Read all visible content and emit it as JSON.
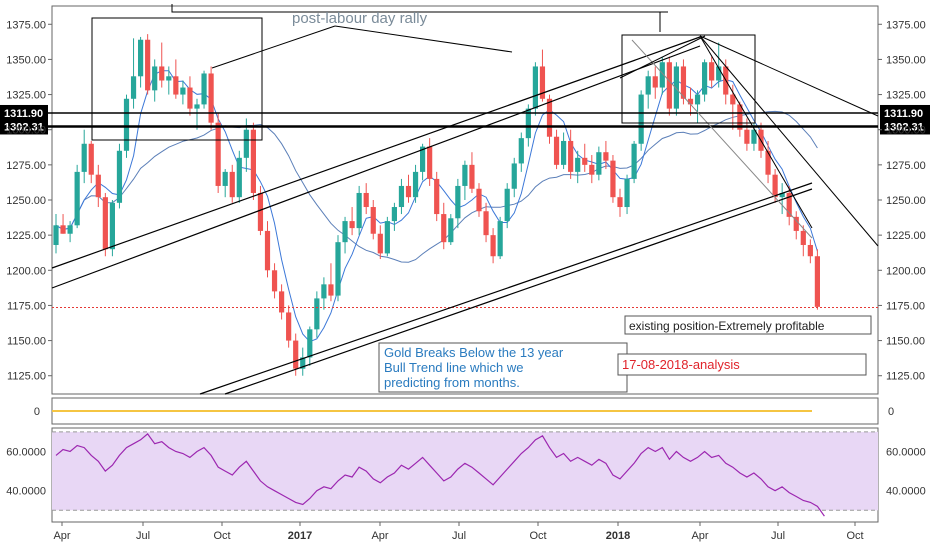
{
  "colors": {
    "up": "#26a69a",
    "down": "#ef5350",
    "ma_fast": "#3c78d8",
    "ma_slow": "#5b7fb8",
    "rsi_line": "#9c27b0",
    "rsi_band": "#e8d7f5",
    "volume_line": "#f5c542",
    "price_label_bg": "#000000",
    "annotation_blue": "#2a7bbf",
    "annotation_red": "#e0242b"
  },
  "axes": {
    "price_ticks": [
      "1375.00",
      "1350.00",
      "1325.00",
      "1300.00",
      "1275.00",
      "1250.00",
      "1225.00",
      "1200.00",
      "1175.00",
      "1150.00",
      "1125.00"
    ],
    "volume_ticks": [
      "0"
    ],
    "rsi_ticks": [
      "60.0000",
      "40.0000"
    ],
    "x_labels": [
      {
        "text": "Apr",
        "bold": false
      },
      {
        "text": "Jul",
        "bold": false
      },
      {
        "text": "Oct",
        "bold": false
      },
      {
        "text": "2017",
        "bold": true
      },
      {
        "text": "Apr",
        "bold": false
      },
      {
        "text": "Jul",
        "bold": false
      },
      {
        "text": "Oct",
        "bold": false
      },
      {
        "text": "2018",
        "bold": true
      },
      {
        "text": "Apr",
        "bold": false
      },
      {
        "text": "Jul",
        "bold": false
      },
      {
        "text": "Oct",
        "bold": false
      }
    ],
    "price_labels": [
      "1311.90",
      "1302.31"
    ]
  },
  "annotations": {
    "rally_label": "post-labour day rally",
    "gold_breaks": [
      "Gold Breaks Below the 13 year",
      "Bull Trend line which we",
      "predicting from months."
    ],
    "analysis_date": "17-08-2018-analysis",
    "position_note": "existing position-Extremely profitable"
  },
  "chart_data": {
    "type": "candlestick",
    "title": "",
    "xlabel": "",
    "ylabel": "",
    "ylim": [
      1112,
      1388
    ],
    "rsi_ylim": [
      24,
      72
    ],
    "horizontal_lines": [
      1311.9,
      1302.31,
      1173.5
    ],
    "candles": [
      {
        "o": 1218,
        "h": 1240,
        "l": 1212,
        "c": 1232
      },
      {
        "o": 1232,
        "h": 1240,
        "l": 1226,
        "c": 1226
      },
      {
        "o": 1226,
        "h": 1235,
        "l": 1220,
        "c": 1232
      },
      {
        "o": 1232,
        "h": 1275,
        "l": 1230,
        "c": 1270
      },
      {
        "o": 1270,
        "h": 1300,
        "l": 1262,
        "c": 1290
      },
      {
        "o": 1290,
        "h": 1292,
        "l": 1262,
        "c": 1268
      },
      {
        "o": 1268,
        "h": 1275,
        "l": 1245,
        "c": 1252
      },
      {
        "o": 1252,
        "h": 1255,
        "l": 1210,
        "c": 1215
      },
      {
        "o": 1215,
        "h": 1250,
        "l": 1210,
        "c": 1248
      },
      {
        "o": 1248,
        "h": 1290,
        "l": 1244,
        "c": 1285
      },
      {
        "o": 1285,
        "h": 1325,
        "l": 1280,
        "c": 1322
      },
      {
        "o": 1322,
        "h": 1365,
        "l": 1315,
        "c": 1338
      },
      {
        "o": 1338,
        "h": 1366,
        "l": 1330,
        "c": 1364
      },
      {
        "o": 1364,
        "h": 1368,
        "l": 1325,
        "c": 1328
      },
      {
        "o": 1328,
        "h": 1350,
        "l": 1320,
        "c": 1345
      },
      {
        "o": 1345,
        "h": 1362,
        "l": 1330,
        "c": 1335
      },
      {
        "o": 1335,
        "h": 1345,
        "l": 1325,
        "c": 1338
      },
      {
        "o": 1338,
        "h": 1350,
        "l": 1322,
        "c": 1325
      },
      {
        "o": 1325,
        "h": 1335,
        "l": 1318,
        "c": 1330
      },
      {
        "o": 1330,
        "h": 1338,
        "l": 1310,
        "c": 1315
      },
      {
        "o": 1315,
        "h": 1322,
        "l": 1300,
        "c": 1318
      },
      {
        "o": 1318,
        "h": 1342,
        "l": 1315,
        "c": 1340
      },
      {
        "o": 1340,
        "h": 1345,
        "l": 1300,
        "c": 1305
      },
      {
        "o": 1305,
        "h": 1312,
        "l": 1255,
        "c": 1260
      },
      {
        "o": 1260,
        "h": 1272,
        "l": 1252,
        "c": 1270
      },
      {
        "o": 1270,
        "h": 1275,
        "l": 1248,
        "c": 1252
      },
      {
        "o": 1252,
        "h": 1285,
        "l": 1248,
        "c": 1280
      },
      {
        "o": 1280,
        "h": 1308,
        "l": 1270,
        "c": 1300
      },
      {
        "o": 1300,
        "h": 1305,
        "l": 1250,
        "c": 1255
      },
      {
        "o": 1255,
        "h": 1260,
        "l": 1225,
        "c": 1228
      },
      {
        "o": 1228,
        "h": 1235,
        "l": 1195,
        "c": 1200
      },
      {
        "o": 1200,
        "h": 1205,
        "l": 1180,
        "c": 1185
      },
      {
        "o": 1185,
        "h": 1190,
        "l": 1165,
        "c": 1170
      },
      {
        "o": 1170,
        "h": 1175,
        "l": 1145,
        "c": 1150
      },
      {
        "o": 1150,
        "h": 1155,
        "l": 1125,
        "c": 1130
      },
      {
        "o": 1130,
        "h": 1145,
        "l": 1125,
        "c": 1138
      },
      {
        "o": 1138,
        "h": 1160,
        "l": 1132,
        "c": 1158
      },
      {
        "o": 1158,
        "h": 1185,
        "l": 1152,
        "c": 1180
      },
      {
        "o": 1180,
        "h": 1195,
        "l": 1172,
        "c": 1190
      },
      {
        "o": 1190,
        "h": 1205,
        "l": 1178,
        "c": 1182
      },
      {
        "o": 1182,
        "h": 1225,
        "l": 1178,
        "c": 1220
      },
      {
        "o": 1220,
        "h": 1238,
        "l": 1212,
        "c": 1235
      },
      {
        "o": 1235,
        "h": 1245,
        "l": 1225,
        "c": 1230
      },
      {
        "o": 1230,
        "h": 1260,
        "l": 1225,
        "c": 1255
      },
      {
        "o": 1255,
        "h": 1262,
        "l": 1240,
        "c": 1245
      },
      {
        "o": 1245,
        "h": 1250,
        "l": 1222,
        "c": 1226
      },
      {
        "o": 1226,
        "h": 1232,
        "l": 1208,
        "c": 1212
      },
      {
        "o": 1212,
        "h": 1238,
        "l": 1210,
        "c": 1235
      },
      {
        "o": 1235,
        "h": 1248,
        "l": 1228,
        "c": 1245
      },
      {
        "o": 1245,
        "h": 1265,
        "l": 1240,
        "c": 1260
      },
      {
        "o": 1260,
        "h": 1268,
        "l": 1248,
        "c": 1252
      },
      {
        "o": 1252,
        "h": 1275,
        "l": 1248,
        "c": 1270
      },
      {
        "o": 1270,
        "h": 1290,
        "l": 1264,
        "c": 1288
      },
      {
        "o": 1288,
        "h": 1294,
        "l": 1260,
        "c": 1265
      },
      {
        "o": 1265,
        "h": 1270,
        "l": 1235,
        "c": 1240
      },
      {
        "o": 1240,
        "h": 1248,
        "l": 1215,
        "c": 1220
      },
      {
        "o": 1220,
        "h": 1240,
        "l": 1218,
        "c": 1237
      },
      {
        "o": 1237,
        "h": 1265,
        "l": 1230,
        "c": 1260
      },
      {
        "o": 1260,
        "h": 1278,
        "l": 1250,
        "c": 1275
      },
      {
        "o": 1275,
        "h": 1284,
        "l": 1255,
        "c": 1258
      },
      {
        "o": 1258,
        "h": 1262,
        "l": 1238,
        "c": 1242
      },
      {
        "o": 1242,
        "h": 1248,
        "l": 1220,
        "c": 1225
      },
      {
        "o": 1225,
        "h": 1230,
        "l": 1205,
        "c": 1210
      },
      {
        "o": 1210,
        "h": 1238,
        "l": 1208,
        "c": 1235
      },
      {
        "o": 1235,
        "h": 1262,
        "l": 1230,
        "c": 1258
      },
      {
        "o": 1258,
        "h": 1280,
        "l": 1252,
        "c": 1276
      },
      {
        "o": 1276,
        "h": 1298,
        "l": 1270,
        "c": 1294
      },
      {
        "o": 1294,
        "h": 1318,
        "l": 1288,
        "c": 1315
      },
      {
        "o": 1315,
        "h": 1348,
        "l": 1310,
        "c": 1345
      },
      {
        "o": 1345,
        "h": 1357,
        "l": 1320,
        "c": 1322
      },
      {
        "o": 1322,
        "h": 1325,
        "l": 1290,
        "c": 1295
      },
      {
        "o": 1295,
        "h": 1300,
        "l": 1272,
        "c": 1275
      },
      {
        "o": 1275,
        "h": 1298,
        "l": 1272,
        "c": 1292
      },
      {
        "o": 1292,
        "h": 1300,
        "l": 1265,
        "c": 1270
      },
      {
        "o": 1270,
        "h": 1285,
        "l": 1262,
        "c": 1280
      },
      {
        "o": 1280,
        "h": 1290,
        "l": 1270,
        "c": 1275
      },
      {
        "o": 1275,
        "h": 1282,
        "l": 1262,
        "c": 1268
      },
      {
        "o": 1268,
        "h": 1288,
        "l": 1264,
        "c": 1284
      },
      {
        "o": 1284,
        "h": 1292,
        "l": 1272,
        "c": 1278
      },
      {
        "o": 1278,
        "h": 1282,
        "l": 1248,
        "c": 1252
      },
      {
        "o": 1252,
        "h": 1258,
        "l": 1238,
        "c": 1245
      },
      {
        "o": 1245,
        "h": 1268,
        "l": 1240,
        "c": 1265
      },
      {
        "o": 1265,
        "h": 1292,
        "l": 1262,
        "c": 1290
      },
      {
        "o": 1290,
        "h": 1328,
        "l": 1285,
        "c": 1325
      },
      {
        "o": 1325,
        "h": 1342,
        "l": 1315,
        "c": 1338
      },
      {
        "o": 1338,
        "h": 1345,
        "l": 1322,
        "c": 1330
      },
      {
        "o": 1330,
        "h": 1352,
        "l": 1325,
        "c": 1348
      },
      {
        "o": 1348,
        "h": 1352,
        "l": 1310,
        "c": 1315
      },
      {
        "o": 1315,
        "h": 1348,
        "l": 1310,
        "c": 1345
      },
      {
        "o": 1345,
        "h": 1350,
        "l": 1318,
        "c": 1322
      },
      {
        "o": 1322,
        "h": 1330,
        "l": 1310,
        "c": 1318
      },
      {
        "o": 1318,
        "h": 1328,
        "l": 1305,
        "c": 1325
      },
      {
        "o": 1325,
        "h": 1350,
        "l": 1320,
        "c": 1348
      },
      {
        "o": 1348,
        "h": 1352,
        "l": 1330,
        "c": 1335
      },
      {
        "o": 1335,
        "h": 1362,
        "l": 1330,
        "c": 1345
      },
      {
        "o": 1345,
        "h": 1350,
        "l": 1318,
        "c": 1325
      },
      {
        "o": 1325,
        "h": 1332,
        "l": 1300,
        "c": 1318
      },
      {
        "o": 1318,
        "h": 1320,
        "l": 1295,
        "c": 1300
      },
      {
        "o": 1300,
        "h": 1308,
        "l": 1285,
        "c": 1290
      },
      {
        "o": 1290,
        "h": 1305,
        "l": 1285,
        "c": 1300
      },
      {
        "o": 1300,
        "h": 1305,
        "l": 1280,
        "c": 1285
      },
      {
        "o": 1285,
        "h": 1292,
        "l": 1262,
        "c": 1268
      },
      {
        "o": 1268,
        "h": 1272,
        "l": 1248,
        "c": 1252
      },
      {
        "o": 1252,
        "h": 1262,
        "l": 1240,
        "c": 1255
      },
      {
        "o": 1255,
        "h": 1260,
        "l": 1232,
        "c": 1238
      },
      {
        "o": 1238,
        "h": 1242,
        "l": 1222,
        "c": 1228
      },
      {
        "o": 1228,
        "h": 1232,
        "l": 1210,
        "c": 1218
      },
      {
        "o": 1218,
        "h": 1222,
        "l": 1205,
        "c": 1210
      },
      {
        "o": 1210,
        "h": 1215,
        "l": 1172,
        "c": 1174
      }
    ],
    "rsi": [
      58,
      61,
      60,
      63,
      62,
      58,
      55,
      50,
      53,
      58,
      62,
      64,
      66,
      69,
      64,
      65,
      62,
      60,
      59,
      57,
      60,
      62,
      58,
      52,
      50,
      48,
      52,
      55,
      50,
      45,
      42,
      40,
      38,
      36,
      34,
      33,
      36,
      40,
      42,
      41,
      45,
      48,
      47,
      52,
      50,
      46,
      44,
      47,
      49,
      53,
      51,
      54,
      57,
      53,
      49,
      45,
      47,
      51,
      54,
      52,
      49,
      46,
      43,
      47,
      51,
      55,
      59,
      62,
      66,
      68,
      62,
      57,
      59,
      55,
      57,
      55,
      53,
      56,
      54,
      48,
      46,
      50,
      54,
      59,
      62,
      60,
      62,
      56,
      60,
      57,
      55,
      57,
      60,
      57,
      58,
      54,
      52,
      49,
      47,
      49,
      46,
      42,
      40,
      42,
      39,
      37,
      35,
      34,
      32,
      27
    ]
  }
}
